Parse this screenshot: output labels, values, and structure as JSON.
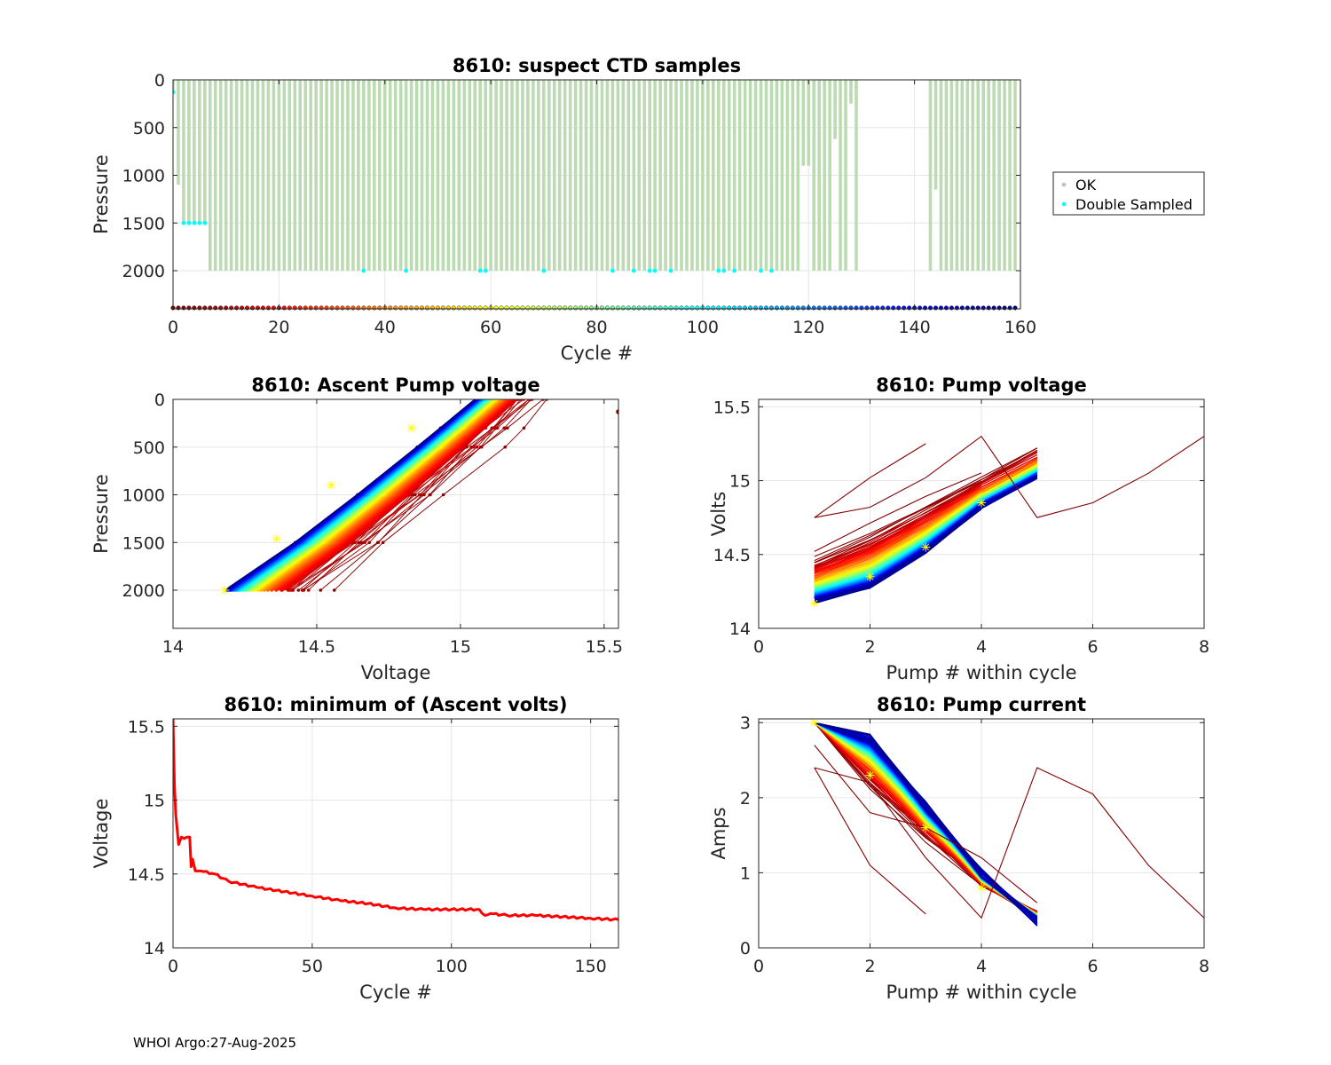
{
  "footer": "WHOI Argo:27-Aug-2025",
  "chart_data": [
    {
      "id": "ctd",
      "type": "scatter",
      "title": "8610: suspect CTD samples",
      "xlabel": "Cycle #",
      "ylabel": "Pressure",
      "xlim": [
        0,
        160
      ],
      "ylim": [
        2400,
        0
      ],
      "xticks": [
        0,
        20,
        40,
        60,
        80,
        100,
        120,
        140,
        160
      ],
      "yticks": [
        0,
        500,
        1000,
        1500,
        2000
      ],
      "legend": [
        "OK",
        "Double Sampled"
      ],
      "legend_position": "outside-right",
      "colors": {
        "ok": "#bddbb2",
        "double": "#00ffff"
      },
      "profiles": {
        "max_pressure": 2000,
        "early_depths": [
          {
            "cycle": 1,
            "max": 1100
          },
          {
            "cycle": 2,
            "max": 1500
          },
          {
            "cycle": 3,
            "max": 1500
          },
          {
            "cycle": 4,
            "max": 1500
          },
          {
            "cycle": 5,
            "max": 1500
          },
          {
            "cycle": 6,
            "max": 1500
          }
        ],
        "gap_cycles": [
          129,
          143
        ],
        "short_profiles": [
          {
            "cycle": 119,
            "max": 900
          },
          {
            "cycle": 120,
            "max": 900
          },
          {
            "cycle": 125,
            "max": 620
          },
          {
            "cycle": 128,
            "max": 250
          },
          {
            "cycle": 144,
            "max": 1150
          }
        ]
      },
      "double_sampled": [
        {
          "cycle": 0,
          "p": 130
        },
        {
          "cycle": 2,
          "p": 1500
        },
        {
          "cycle": 3,
          "p": 1500
        },
        {
          "cycle": 4,
          "p": 1500
        },
        {
          "cycle": 5,
          "p": 1500
        },
        {
          "cycle": 6,
          "p": 1500
        },
        {
          "cycle": 36,
          "p": 2000
        },
        {
          "cycle": 44,
          "p": 2000
        },
        {
          "cycle": 58,
          "p": 2000
        },
        {
          "cycle": 59,
          "p": 2000
        },
        {
          "cycle": 70,
          "p": 2000
        },
        {
          "cycle": 83,
          "p": 2000
        },
        {
          "cycle": 87,
          "p": 2000
        },
        {
          "cycle": 90,
          "p": 2000
        },
        {
          "cycle": 91,
          "p": 2000
        },
        {
          "cycle": 94,
          "p": 2000
        },
        {
          "cycle": 103,
          "p": 2000
        },
        {
          "cycle": 104,
          "p": 2000
        },
        {
          "cycle": 106,
          "p": 2000
        },
        {
          "cycle": 111,
          "p": 2000
        },
        {
          "cycle": 113,
          "p": 2000
        }
      ],
      "cycle_markers_pressure": 2390
    },
    {
      "id": "ascent",
      "type": "line",
      "title": "8610: Ascent Pump voltage",
      "xlabel": "Voltage",
      "ylabel": "Pressure",
      "xlim": [
        14,
        15.55
      ],
      "ylim": [
        2400,
        0
      ],
      "xticks": [
        14,
        14.5,
        15,
        15.5
      ],
      "yticks": [
        0,
        500,
        1000,
        1500,
        2000
      ],
      "series_summary": {
        "n_cycles": 160,
        "v_at_2000_first": 14.55,
        "v_at_2000_last": 14.18,
        "v_at_surface_first": 15.3,
        "v_at_surface_last": 15.05
      },
      "yellow_markers": [
        {
          "v": 14.18,
          "p": 2000
        },
        {
          "v": 14.36,
          "p": 1460
        },
        {
          "v": 14.55,
          "p": 900
        },
        {
          "v": 14.83,
          "p": 300
        }
      ],
      "outlier": {
        "v": 15.55,
        "p": 130
      }
    },
    {
      "id": "pumpv",
      "type": "line",
      "title": "8610: Pump voltage",
      "xlabel": "Pump # within cycle",
      "ylabel": "Volts",
      "xlim": [
        0,
        8
      ],
      "ylim": [
        14,
        15.55
      ],
      "xticks": [
        0,
        2,
        4,
        6,
        8
      ],
      "yticks": [
        14,
        14.5,
        15,
        15.5
      ],
      "series_summary": {
        "pump_numbers": [
          1,
          2,
          3,
          4,
          5
        ],
        "first_cycle": [
          14.52,
          14.7,
          14.88,
          15.05,
          15.25
        ],
        "last_cycle": [
          14.18,
          14.28,
          14.52,
          14.82,
          15.02
        ]
      },
      "special_series": [
        {
          "x": [
            1,
            2,
            3,
            4,
            5,
            6,
            7,
            8
          ],
          "y": [
            14.75,
            14.82,
            15.02,
            15.3,
            14.75,
            14.85,
            15.05,
            15.3
          ]
        },
        {
          "x": [
            1,
            2,
            3
          ],
          "y": [
            14.75,
            15.02,
            15.25
          ]
        }
      ],
      "yellow_markers": [
        {
          "x": 1,
          "y": 14.17
        },
        {
          "x": 2,
          "y": 14.35
        },
        {
          "x": 3,
          "y": 14.55
        },
        {
          "x": 4,
          "y": 14.85
        }
      ]
    },
    {
      "id": "minv",
      "type": "line",
      "title": "8610: minimum of (Ascent volts)",
      "xlabel": "Cycle #",
      "ylabel": "Voltage",
      "xlim": [
        0,
        160
      ],
      "ylim": [
        14,
        15.55
      ],
      "xticks": [
        0,
        50,
        100,
        150
      ],
      "yticks": [
        14,
        14.5,
        15,
        15.5
      ],
      "color": "#ff0000",
      "x": [
        0,
        0.5,
        1,
        1.5,
        2,
        3,
        4,
        5,
        6,
        6.5,
        7,
        8,
        10,
        15,
        20,
        30,
        40,
        50,
        60,
        70,
        80,
        90,
        100,
        110,
        112,
        115,
        120,
        130,
        140,
        150,
        160
      ],
      "y": [
        15.55,
        15.1,
        14.9,
        14.8,
        14.7,
        14.75,
        14.74,
        14.75,
        14.75,
        14.55,
        14.6,
        14.52,
        14.52,
        14.5,
        14.45,
        14.41,
        14.38,
        14.35,
        14.32,
        14.3,
        14.27,
        14.26,
        14.26,
        14.26,
        14.22,
        14.23,
        14.22,
        14.22,
        14.21,
        14.2,
        14.19
      ]
    },
    {
      "id": "pumpc",
      "type": "line",
      "title": "8610: Pump current",
      "xlabel": "Pump # within cycle",
      "ylabel": "Amps",
      "xlim": [
        0,
        8
      ],
      "ylim": [
        0,
        3.05
      ],
      "xticks": [
        0,
        2,
        4,
        6,
        8
      ],
      "yticks": [
        0,
        1,
        2,
        3
      ],
      "series_summary": {
        "pump_numbers": [
          1,
          2,
          3,
          4,
          5
        ],
        "first_cycle": [
          3.0,
          2.1,
          1.45,
          0.85,
          0.45
        ],
        "last_cycle": [
          3.0,
          2.8,
          1.9,
          1.0,
          0.35
        ]
      },
      "special_series": [
        {
          "x": [
            1,
            2,
            3,
            4,
            5,
            6,
            7,
            8
          ],
          "y": [
            2.4,
            2.2,
            1.2,
            0.4,
            2.4,
            2.05,
            1.1,
            0.4
          ]
        },
        {
          "x": [
            1,
            2,
            3
          ],
          "y": [
            2.4,
            1.1,
            0.45
          ]
        },
        {
          "x": [
            1,
            2,
            3,
            4,
            5
          ],
          "y": [
            2.7,
            1.8,
            1.6,
            1.2,
            0.6
          ]
        }
      ],
      "yellow_markers": [
        {
          "x": 1,
          "y": 3.0
        },
        {
          "x": 2,
          "y": 2.3
        },
        {
          "x": 3,
          "y": 1.6
        },
        {
          "x": 4,
          "y": 0.8
        }
      ]
    }
  ]
}
